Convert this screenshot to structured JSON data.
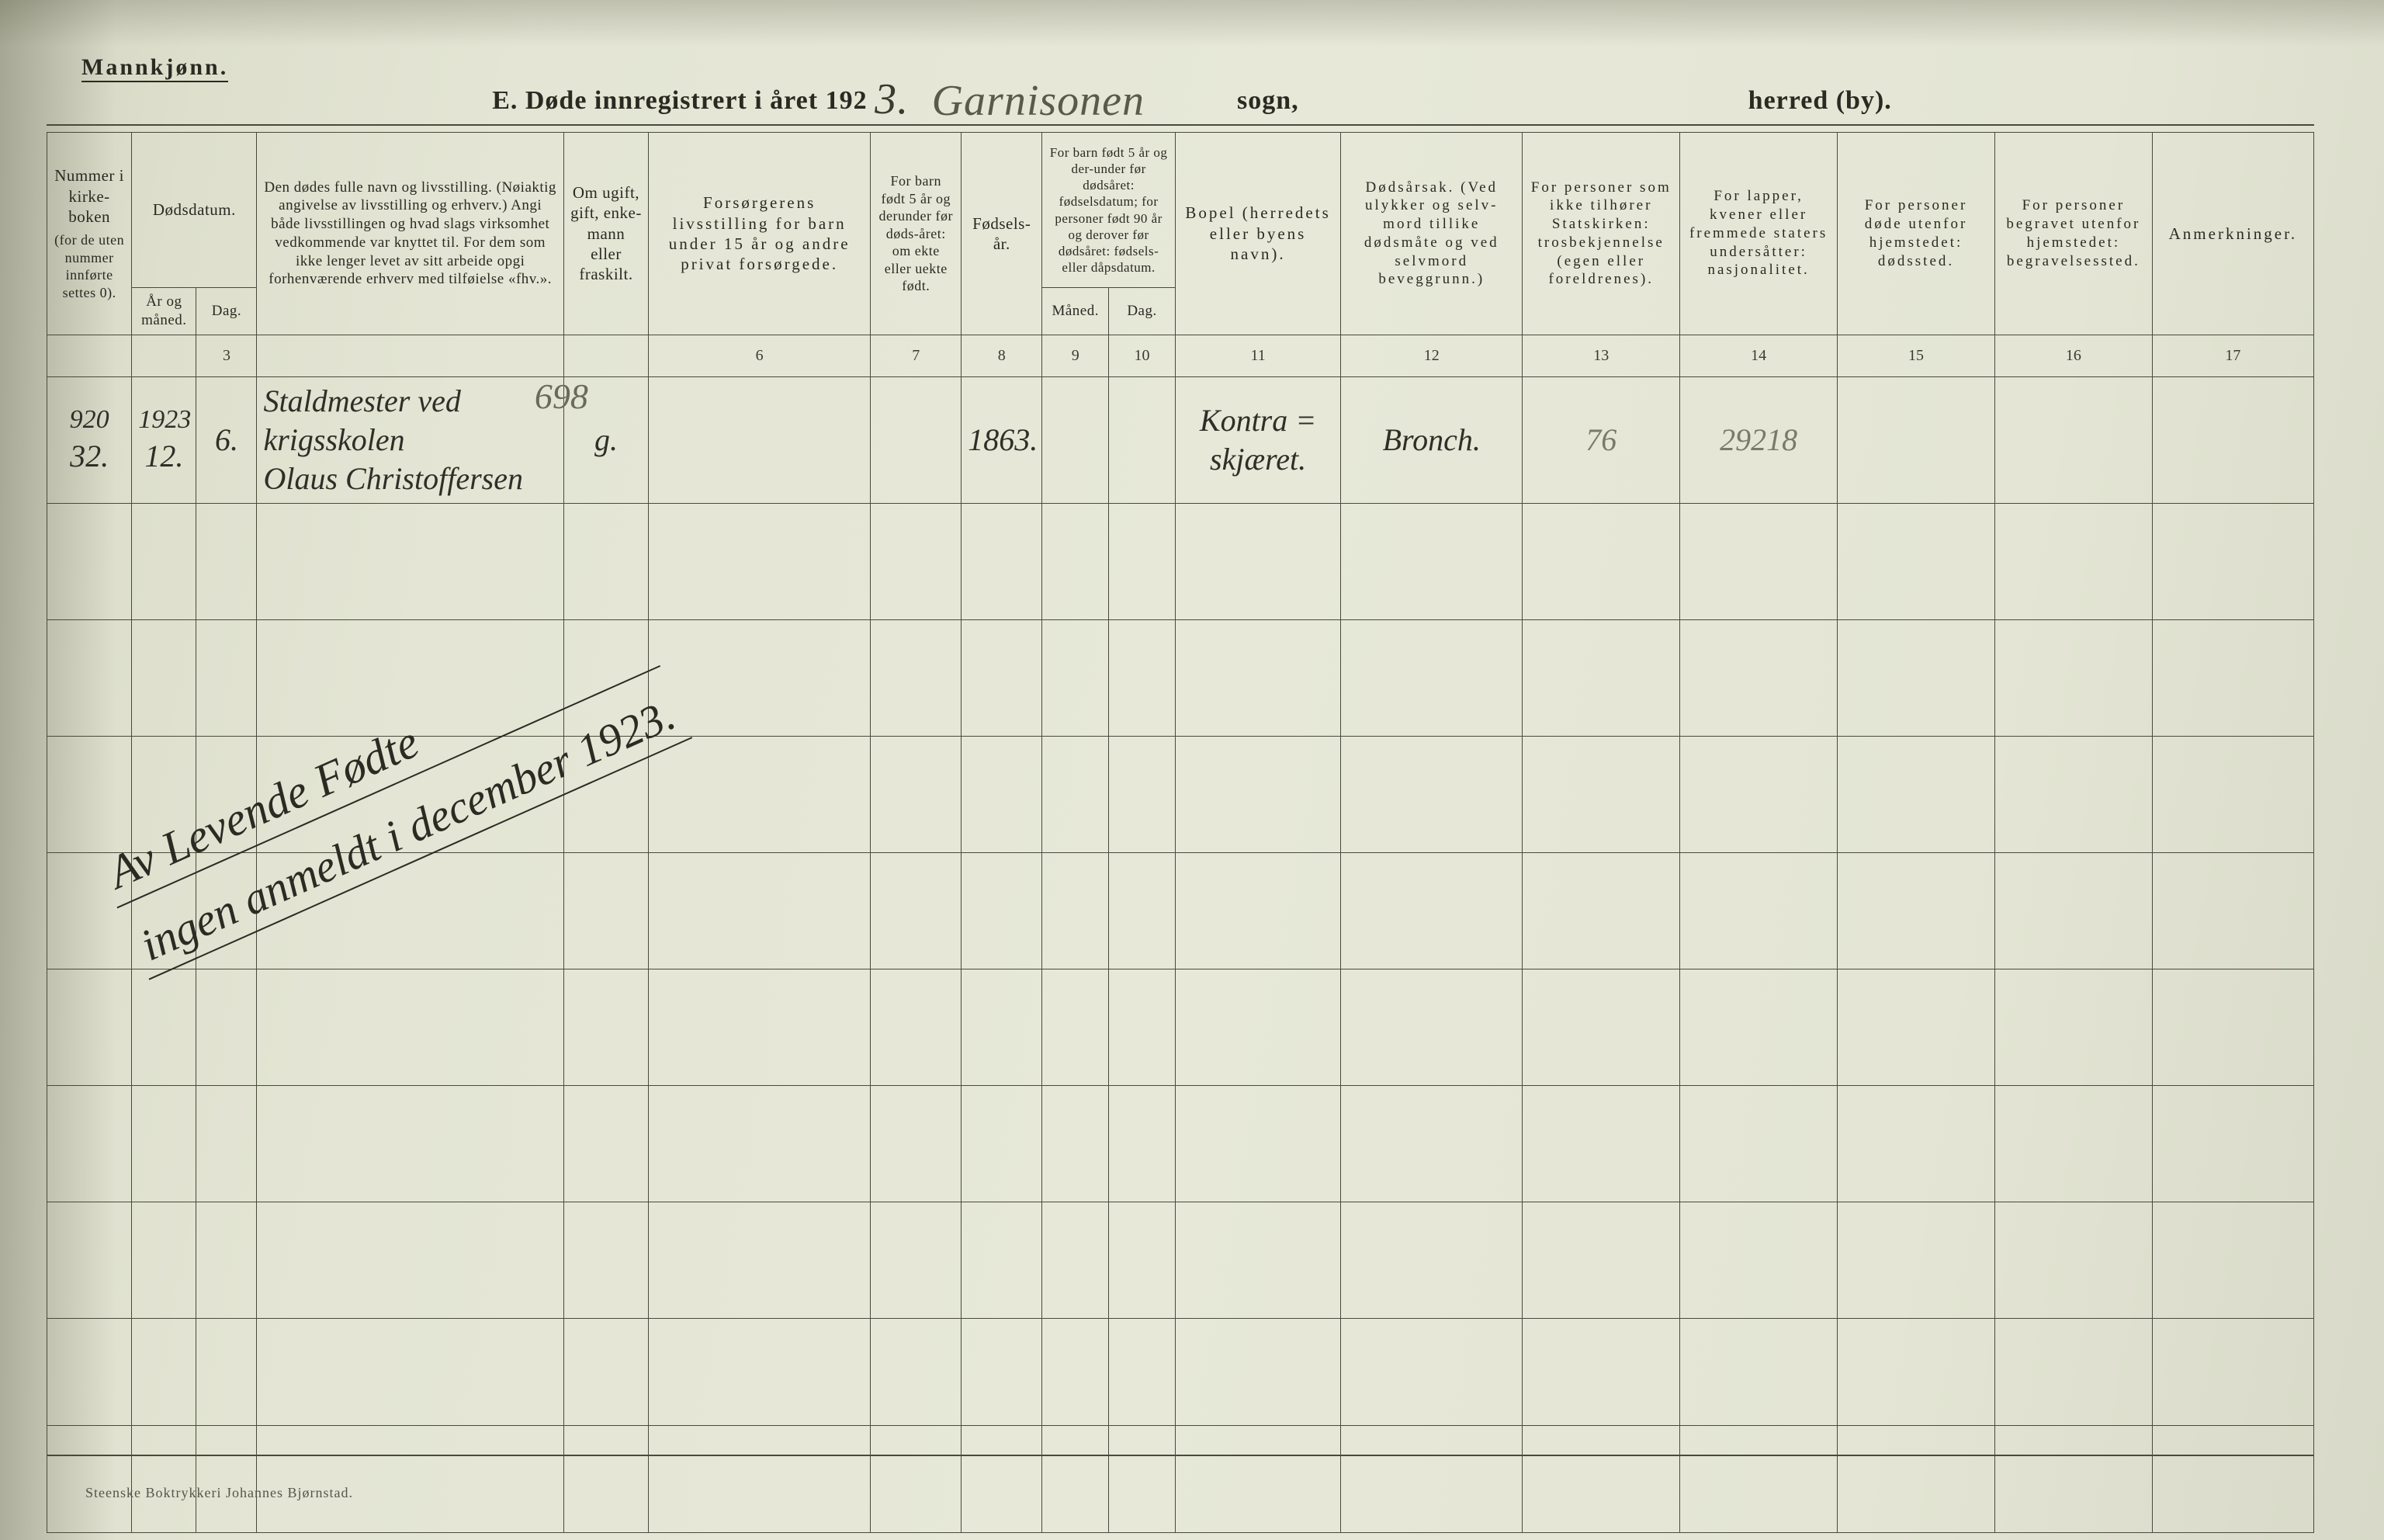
{
  "page": {
    "gender_label": "Mannkjønn.",
    "title_prefix": "E.   Døde innregistrert i året 192",
    "year_digit": "3.",
    "sogn_handwritten": "Garnisonen",
    "sogn_label": "sogn,",
    "herred_label": "herred (by).",
    "footer": "Steenske Boktrykkeri Johannes Bjørnstad.",
    "background_color": "#e5e6d5",
    "ink_color": "#2a2a22",
    "rule_color": "#4a4a3c"
  },
  "columns": {
    "widths_pct": [
      4.2,
      3.2,
      3.0,
      15.2,
      4.2,
      11.0,
      4.5,
      4.0,
      3.3,
      3.3,
      8.2,
      9.0,
      7.8,
      7.8,
      7.8,
      7.8,
      8.0
    ],
    "col1": {
      "top": "Nummer i kirke-boken",
      "bottom": "(for de uten nummer innførte settes 0)."
    },
    "col2_group": "Dødsdatum.",
    "col2a": "År og måned.",
    "col2b": "Dag.",
    "col3": "Den dødes fulle navn og livsstilling.\n(Nøiaktig angivelse av livsstilling og erhverv.)\nAngi både livsstillingen og hvad slags virksomhet vedkommende var knyttet til.\nFor dem som ikke lenger levet av sitt arbeide opgi forhenværende erhverv med tilføielse «fhv.».",
    "col4": "Om ugift, gift, enke-mann eller fraskilt.",
    "col5": "Forsørgerens livsstilling\nfor barn under 15 år\nog andre privat forsørgede.",
    "col6": "For barn født 5 år og derunder før døds-året:\nom ekte eller uekte født.",
    "col7": "Fødsels-år.",
    "col8_group": "For barn født 5 år og der-under før dødsåret:\nfødselsdatum;\nfor personer født 90 år og derover før dødsåret:\nfødsels- eller dåpsdatum.",
    "col8a": "Måned.",
    "col8b": "Dag.",
    "col9": "Bopel\n(herredets eller byens navn).",
    "col10": "Dødsårsak.\n(Ved ulykker og selv-mord tillike dødsmåte og ved selvmord beveggrunn.)",
    "col11": "For personer som ikke tilhører Statskirken:\ntrosbekjennelse\n(egen eller foreldrenes).",
    "col12": "For lapper, kvener eller fremmede staters undersåtter:\nnasjonalitet.",
    "col13": "For personer døde utenfor hjemstedet:\ndødssted.",
    "col14": "For personer begravet utenfor hjemstedet:\nbegravelsessted.",
    "col15": "Anmerkninger.",
    "spaced_keys": [
      "col5",
      "col10",
      "col11",
      "col12",
      "col13",
      "col14",
      "col15"
    ]
  },
  "col_numbers": [
    "",
    "",
    "3",
    "",
    "",
    "6",
    "7",
    "8",
    "9",
    "10",
    "11",
    "12",
    "13",
    "14",
    "15",
    "16",
    "17"
  ],
  "entries": [
    {
      "num_top": "920",
      "num_bottom": "32.",
      "year_month_top": "1923",
      "year_month_bottom": "12.",
      "day": "6.",
      "name_line1": "Staldmester ved",
      "name_line2": "krigsskolen",
      "name_line3": "Olaus Christoffersen",
      "overwrite_number": "698",
      "civil_status": "g.",
      "provider": "",
      "legitimacy": "",
      "birth_year": "1863.",
      "birth_month": "",
      "birth_day": "",
      "residence_line1": "Kontra =",
      "residence_line2": "skjæret.",
      "cause": "Bronch.",
      "confession": "76",
      "nationality": "29218",
      "death_place": "",
      "burial_place": "",
      "remarks": ""
    }
  ],
  "diagonal_note": {
    "line1": "Av Levende Fødte",
    "line2": "ingen anmeldt  i december 1923."
  },
  "blank_row_count": 9
}
